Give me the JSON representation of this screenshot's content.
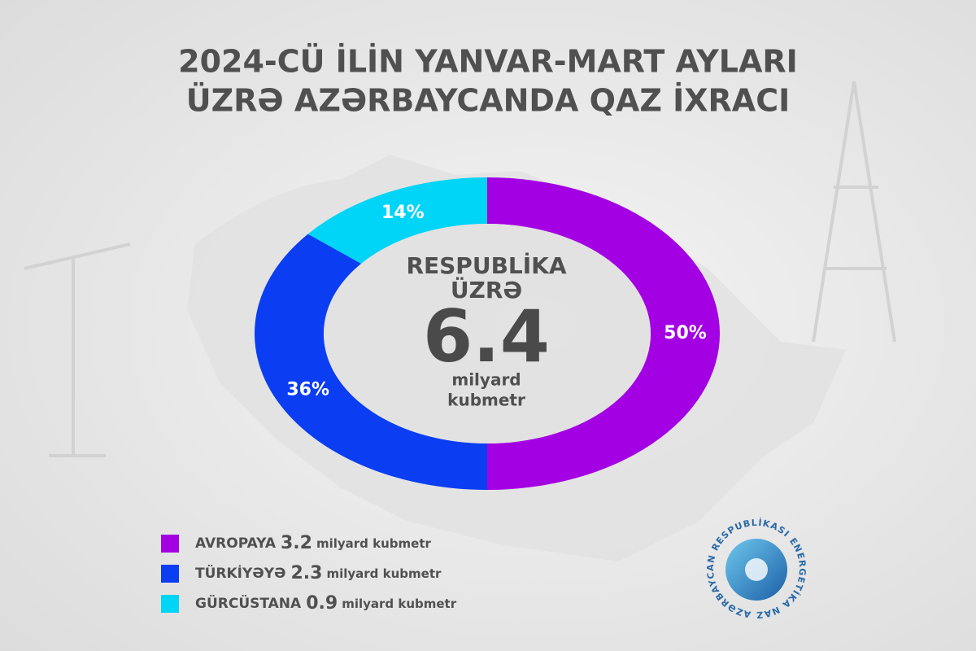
{
  "chart_data": {
    "type": "pie",
    "title": [
      "2024-CÜ İLİN YANVAR-MART AYLARI",
      "ÜZRƏ AZƏRBAYCANDA QAZ İXRACI"
    ],
    "categories": [
      "AVROPAYA",
      "TÜRKİYƏYƏ",
      "GÜRCÜSTANA"
    ],
    "values": [
      50,
      36,
      14
    ],
    "value_labels": [
      "50%",
      "36%",
      "14%"
    ],
    "colors": [
      "#a300e3",
      "#0b3df2",
      "#00d4f7"
    ],
    "amounts": [
      3.2,
      2.3,
      0.9
    ],
    "amount_unit": "milyard kubmetr",
    "center_label": [
      "RESPUBLİKA",
      "ÜZRƏ"
    ],
    "total": 6.4,
    "total_unit": [
      "milyard",
      "kubmetr"
    ],
    "logo_text": "AZƏRBAYCAN RESPUBLİKASI ENERGETİKA NAZİRLİYİ"
  }
}
